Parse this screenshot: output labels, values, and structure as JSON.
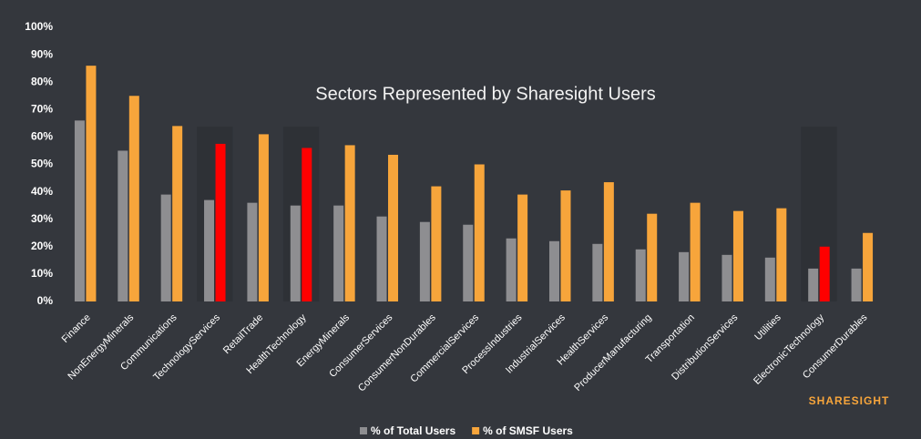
{
  "chart_data": {
    "type": "bar",
    "title": "Sectors Represented by Sharesight Users",
    "brand": "SHARESIGHT",
    "categories": [
      "Finance",
      "NonEnergyMinerals",
      "Communications",
      "TechnologyServices",
      "RetailTrade",
      "HealthTechnology",
      "EnergyMinerals",
      "ConsumerServices",
      "ConsumerNonDurables",
      "CommercialServices",
      "ProcessIndustries",
      "IndustrialServices",
      "HealthServices",
      "ProducerManufacturing",
      "Transportation",
      "DistributionServices",
      "Utilities",
      "ElectronicTechnology",
      "ConsumerDurables"
    ],
    "series": [
      {
        "name": "% of Total Users",
        "color": "#8e8e91",
        "values": [
          66,
          55,
          39,
          37,
          36,
          35,
          35,
          31,
          29,
          28,
          23,
          22,
          21,
          19,
          18,
          17,
          16,
          12,
          12
        ]
      },
      {
        "name": "% of SMSF Users",
        "color": "#f7a53b",
        "highlight_color": "#ff0000",
        "highlighted": [
          "TechnologyServices",
          "HealthTechnology",
          "ElectronicTechnology"
        ],
        "values": [
          86,
          75,
          64,
          57.5,
          61,
          56,
          57,
          53.5,
          42,
          50,
          39,
          40.5,
          43.5,
          32,
          36,
          33,
          34,
          20,
          25
        ]
      }
    ],
    "ylim": [
      0,
      100
    ],
    "yticks": [
      {
        "value": 0,
        "label": "0%"
      },
      {
        "value": 10,
        "label": "10%"
      },
      {
        "value": 20,
        "label": "20%"
      },
      {
        "value": 30,
        "label": "30%"
      },
      {
        "value": 40,
        "label": "40%"
      },
      {
        "value": 50,
        "label": "50%"
      },
      {
        "value": 60,
        "label": "60%"
      },
      {
        "value": 70,
        "label": "70%"
      },
      {
        "value": 80,
        "label": "80%"
      },
      {
        "value": 90,
        "label": "90%"
      },
      {
        "value": 100,
        "label": "100%"
      }
    ],
    "grid": false,
    "legend": "bottom"
  }
}
